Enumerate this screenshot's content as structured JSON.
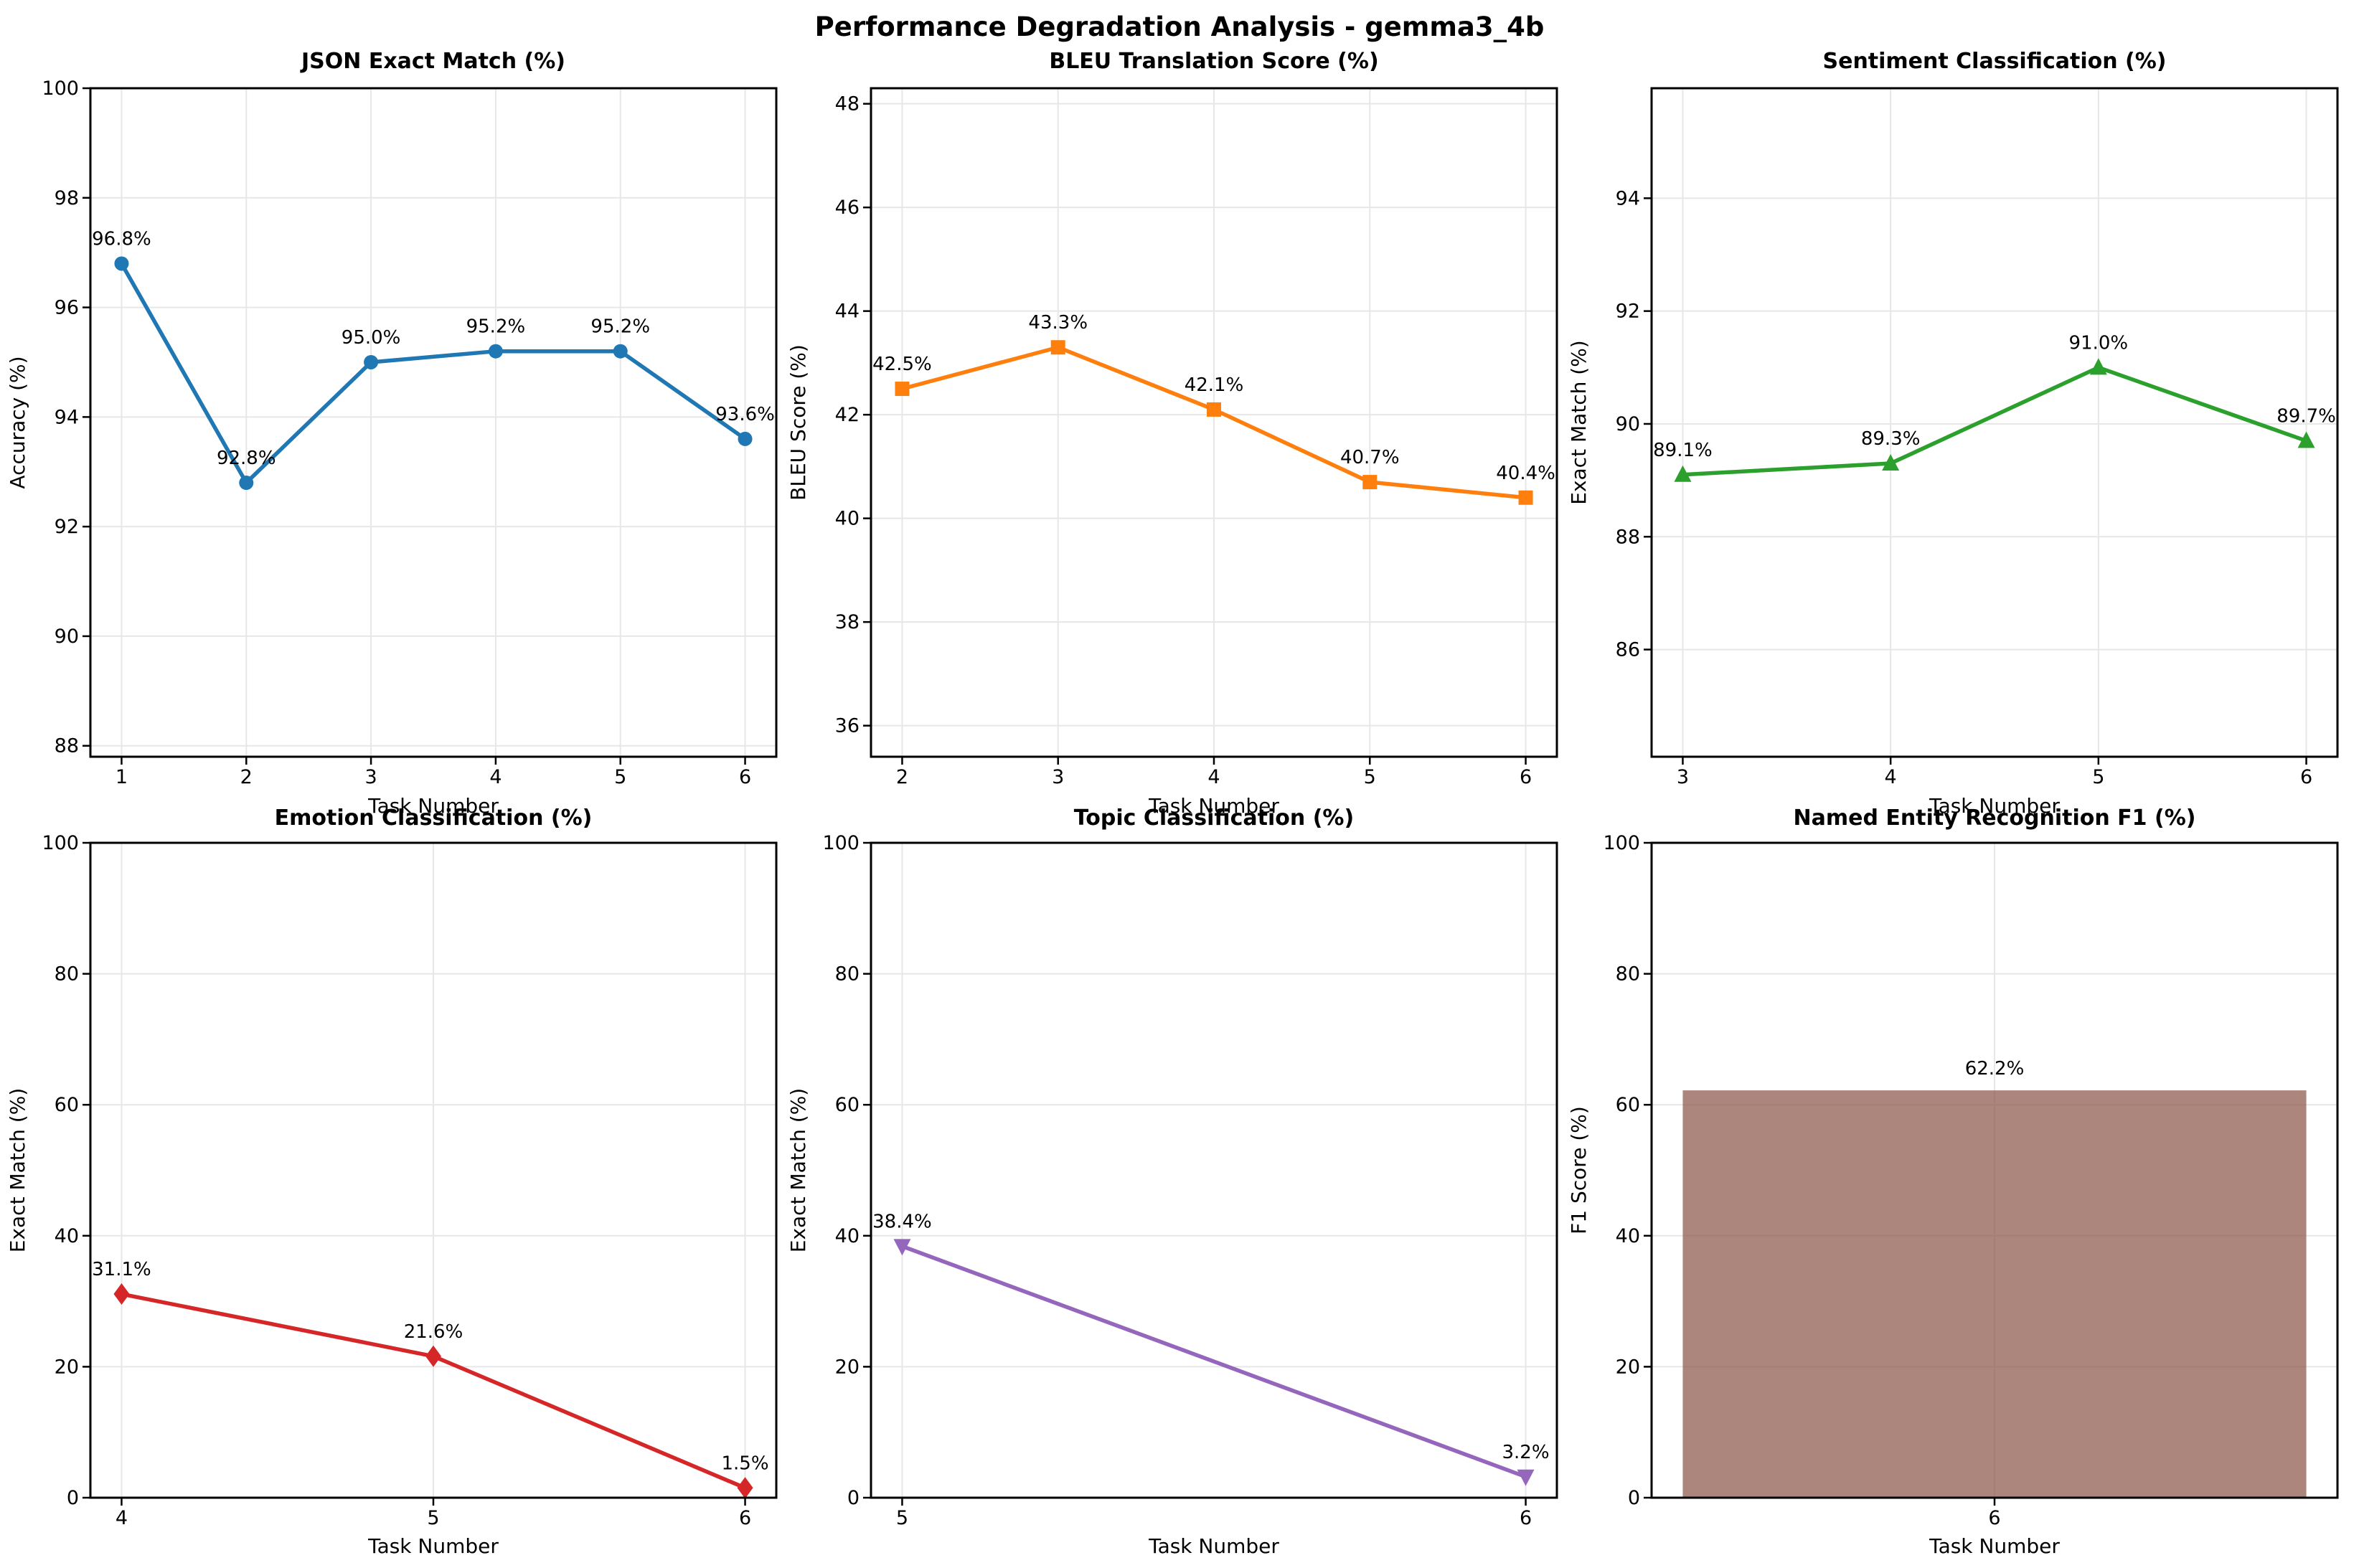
{
  "title": "Performance Degradation Analysis - gemma3_4b",
  "chart_data": [
    {
      "type": "line",
      "title": "JSON Exact Match (%)",
      "xlabel": "Task Number",
      "ylabel": "Accuracy (%)",
      "color": "#1f77b4",
      "marker": "circle",
      "x": [
        1,
        2,
        3,
        4,
        5,
        6
      ],
      "values": [
        96.8,
        92.8,
        95.0,
        95.2,
        95.2,
        93.6
      ],
      "point_labels": [
        "96.8%",
        "92.8%",
        "95.0%",
        "95.2%",
        "95.2%",
        "93.6%"
      ],
      "xticks": [
        1,
        2,
        3,
        4,
        5,
        6
      ],
      "yticks": [
        88,
        90,
        92,
        94,
        96,
        98,
        100
      ],
      "xlim": [
        0.75,
        6.25
      ],
      "ylim": [
        87.8,
        100
      ],
      "grid": true
    },
    {
      "type": "line",
      "title": "BLEU Translation Score (%)",
      "xlabel": "Task Number",
      "ylabel": "BLEU Score (%)",
      "color": "#ff7f0e",
      "marker": "square",
      "x": [
        2,
        3,
        4,
        5,
        6
      ],
      "values": [
        42.5,
        43.3,
        42.1,
        40.7,
        40.4
      ],
      "point_labels": [
        "42.5%",
        "43.3%",
        "42.1%",
        "40.7%",
        "40.4%"
      ],
      "xticks": [
        2,
        3,
        4,
        5,
        6
      ],
      "yticks": [
        36,
        38,
        40,
        42,
        44,
        46,
        48
      ],
      "xlim": [
        1.8,
        6.2
      ],
      "ylim": [
        35.4,
        48.3
      ],
      "grid": true
    },
    {
      "type": "line",
      "title": "Sentiment Classification (%)",
      "xlabel": "Task Number",
      "ylabel": "Exact Match (%)",
      "color": "#2ca02c",
      "marker": "triangle-up",
      "x": [
        3,
        4,
        5,
        6
      ],
      "values": [
        89.1,
        89.3,
        91.0,
        89.7
      ],
      "point_labels": [
        "89.1%",
        "89.3%",
        "91.0%",
        "89.7%"
      ],
      "xticks": [
        3,
        4,
        5,
        6
      ],
      "yticks": [
        86,
        88,
        90,
        92,
        94
      ],
      "xlim": [
        2.85,
        6.15
      ],
      "ylim": [
        84.1,
        95.95
      ],
      "grid": true
    },
    {
      "type": "line",
      "title": "Emotion Classification (%)",
      "xlabel": "Task Number",
      "ylabel": "Exact Match (%)",
      "color": "#d62728",
      "marker": "diamond",
      "x": [
        4,
        5,
        6
      ],
      "values": [
        31.1,
        21.6,
        1.5
      ],
      "point_labels": [
        "31.1%",
        "21.6%",
        "1.5%"
      ],
      "xticks": [
        4,
        5,
        6
      ],
      "yticks": [
        0,
        20,
        40,
        60,
        80,
        100
      ],
      "xlim": [
        3.9,
        6.1
      ],
      "ylim": [
        0,
        100
      ],
      "grid": true
    },
    {
      "type": "line",
      "title": "Topic Classification (%)",
      "xlabel": "Task Number",
      "ylabel": "Exact Match (%)",
      "color": "#9467bd",
      "marker": "triangle-down",
      "x": [
        5,
        6
      ],
      "values": [
        38.4,
        3.2
      ],
      "point_labels": [
        "38.4%",
        "3.2%"
      ],
      "xticks": [
        5,
        6
      ],
      "yticks": [
        0,
        20,
        40,
        60,
        80,
        100
      ],
      "xlim": [
        4.95,
        6.05
      ],
      "ylim": [
        0,
        100
      ],
      "grid": true
    },
    {
      "type": "bar",
      "title": "Named Entity Recognition F1 (%)",
      "xlabel": "Task Number",
      "ylabel": "F1 Score (%)",
      "color": "#8c564b",
      "bar_opacity": 0.72,
      "bar_width": 0.8,
      "x": [
        6
      ],
      "values": [
        62.2
      ],
      "point_labels": [
        "62.2%"
      ],
      "xticks": [
        6
      ],
      "yticks": [
        0,
        20,
        40,
        60,
        80,
        100
      ],
      "xlim": [
        5.56,
        6.44
      ],
      "ylim": [
        0,
        100
      ],
      "grid": true
    }
  ]
}
